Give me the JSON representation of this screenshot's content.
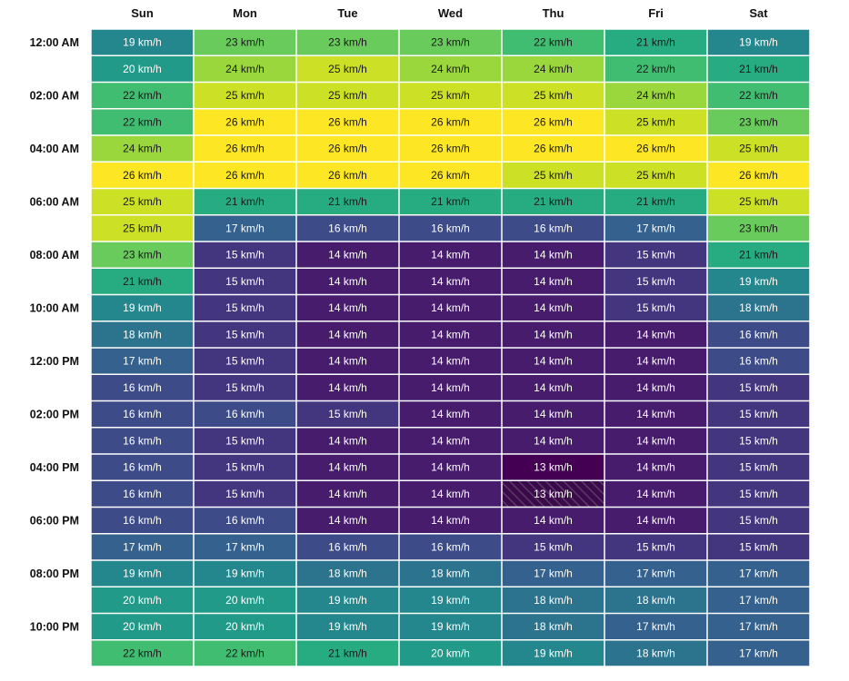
{
  "chart_data": {
    "type": "heatmap",
    "unit": "km/h",
    "columns": [
      "Sun",
      "Mon",
      "Tue",
      "Wed",
      "Thu",
      "Fri",
      "Sat"
    ],
    "row_labels": [
      "12:00 AM",
      "",
      "02:00 AM",
      "",
      "04:00 AM",
      "",
      "06:00 AM",
      "",
      "08:00 AM",
      "",
      "10:00 AM",
      "",
      "12:00 PM",
      "",
      "02:00 PM",
      "",
      "04:00 PM",
      "",
      "06:00 PM",
      "",
      "08:00 PM",
      "",
      "10:00 PM",
      ""
    ],
    "values": [
      [
        19,
        23,
        23,
        23,
        22,
        21,
        19
      ],
      [
        20,
        24,
        25,
        24,
        24,
        22,
        21
      ],
      [
        22,
        25,
        25,
        25,
        25,
        24,
        22
      ],
      [
        22,
        26,
        26,
        26,
        26,
        25,
        23
      ],
      [
        24,
        26,
        26,
        26,
        26,
        26,
        25
      ],
      [
        26,
        26,
        26,
        26,
        25,
        25,
        26
      ],
      [
        25,
        21,
        21,
        21,
        21,
        21,
        25
      ],
      [
        25,
        17,
        16,
        16,
        16,
        17,
        23
      ],
      [
        23,
        15,
        14,
        14,
        14,
        15,
        21
      ],
      [
        21,
        15,
        14,
        14,
        14,
        15,
        19
      ],
      [
        19,
        15,
        14,
        14,
        14,
        15,
        18
      ],
      [
        18,
        15,
        14,
        14,
        14,
        14,
        16
      ],
      [
        17,
        15,
        14,
        14,
        14,
        14,
        16
      ],
      [
        16,
        15,
        14,
        14,
        14,
        14,
        15
      ],
      [
        16,
        16,
        15,
        14,
        14,
        14,
        15
      ],
      [
        16,
        15,
        14,
        14,
        14,
        14,
        15
      ],
      [
        16,
        15,
        14,
        14,
        13,
        14,
        15
      ],
      [
        16,
        15,
        14,
        14,
        13,
        14,
        15
      ],
      [
        16,
        16,
        14,
        14,
        14,
        14,
        15
      ],
      [
        17,
        17,
        16,
        16,
        15,
        15,
        15
      ],
      [
        19,
        19,
        18,
        18,
        17,
        17,
        17
      ],
      [
        20,
        20,
        19,
        19,
        18,
        18,
        17
      ],
      [
        20,
        20,
        19,
        19,
        18,
        17,
        17
      ],
      [
        22,
        22,
        21,
        20,
        19,
        18,
        17
      ]
    ],
    "color_scale": "viridis",
    "value_range": [
      13,
      26
    ],
    "highlighted_cell": {
      "row": 17,
      "column": "Thu",
      "style": "hatched"
    }
  }
}
